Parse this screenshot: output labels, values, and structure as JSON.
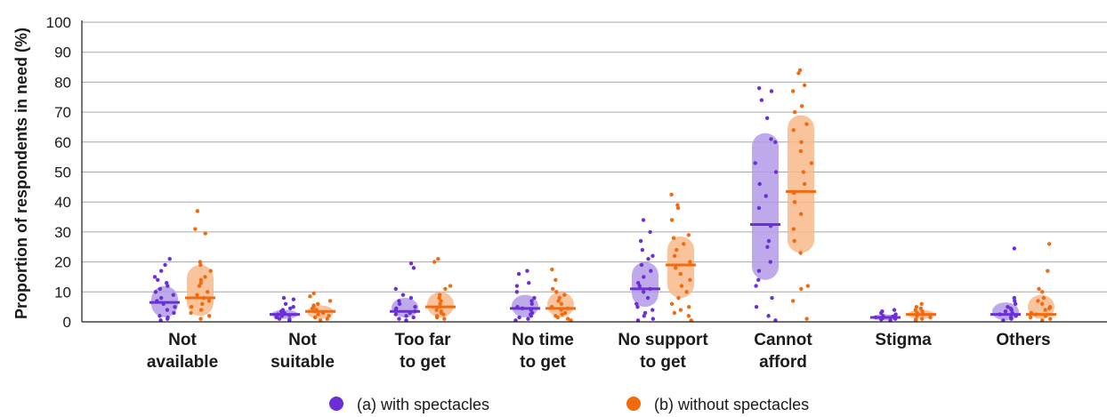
{
  "chart_data": {
    "type": "scatter",
    "ylabel": "Proportion of respondents in need (%)",
    "ylim": [
      0,
      100
    ],
    "yticks": [
      0,
      10,
      20,
      30,
      40,
      50,
      60,
      70,
      80,
      90,
      100
    ],
    "grid": "horizontal",
    "legend_position": "bottom",
    "categories": [
      [
        "Not",
        "available"
      ],
      [
        "Not",
        "suitable"
      ],
      [
        "Too far",
        "to get"
      ],
      [
        "No time",
        "to get"
      ],
      [
        "No support",
        "to get"
      ],
      [
        "Cannot",
        "afford"
      ],
      [
        "Stigma"
      ],
      [
        "Others"
      ]
    ],
    "series": [
      {
        "name": "(a) with spectacles",
        "color": "#6b2fd6",
        "band_color": "#b39be6",
        "medians": [
          6.5,
          2.5,
          3.5,
          4.5,
          11,
          32.5,
          1.5,
          2.5
        ],
        "iqr": [
          [
            1.5,
            12
          ],
          [
            1,
            4
          ],
          [
            1.5,
            8
          ],
          [
            1.5,
            9
          ],
          [
            5,
            20
          ],
          [
            14,
            63
          ],
          [
            0.5,
            2.5
          ],
          [
            0.5,
            6.5
          ]
        ],
        "points": [
          [
            21,
            19,
            17,
            15,
            14,
            12,
            10,
            9,
            8,
            7,
            6,
            5,
            4,
            3,
            2,
            1.5,
            1,
            0.5,
            13,
            11
          ],
          [
            8,
            7.5,
            6,
            5,
            4.5,
            4,
            3.5,
            3,
            2.5,
            2,
            1.8,
            1.5,
            1,
            0.8,
            0.5,
            2.2
          ],
          [
            19.5,
            18,
            11,
            9,
            8,
            7,
            6,
            5,
            4,
            3.5,
            3,
            2.5,
            2,
            1.5,
            1,
            0.5,
            4.5
          ],
          [
            17,
            16,
            13,
            12,
            10,
            8,
            7,
            6,
            5,
            4.5,
            4,
            3,
            2.5,
            2,
            1.5,
            1,
            0.5
          ],
          [
            34,
            30,
            27,
            24,
            22,
            21,
            19,
            17,
            15,
            13,
            12,
            11,
            10,
            8,
            6,
            5,
            4,
            3,
            2,
            1,
            0.5
          ],
          [
            78,
            77,
            74,
            68,
            61,
            60,
            53,
            50,
            46,
            42,
            38,
            32,
            27,
            25,
            20,
            17,
            14,
            12,
            8,
            5,
            2,
            0.5
          ],
          [
            4,
            3.5,
            3,
            2.5,
            2,
            1.8,
            1.5,
            1.2,
            1,
            0.8,
            0.5
          ],
          [
            24.5,
            8,
            7,
            6,
            5,
            4.5,
            4,
            3.5,
            3,
            2.5,
            2,
            1.5,
            1,
            0.5
          ]
        ]
      },
      {
        "name": "(b) without spectacles",
        "color": "#f26a10",
        "band_color": "#f8b98a",
        "medians": [
          8,
          3.5,
          5,
          4.5,
          19,
          43.5,
          2.5,
          2.5
        ],
        "iqr": [
          [
            2,
            19
          ],
          [
            1,
            5.5
          ],
          [
            1.5,
            10
          ],
          [
            1.5,
            10
          ],
          [
            8,
            28.5
          ],
          [
            23,
            69
          ],
          [
            1,
            4
          ],
          [
            1,
            9
          ]
        ],
        "points": [
          [
            37,
            31,
            29.5,
            20,
            19,
            17,
            15,
            13,
            12,
            10,
            9,
            8,
            7,
            6,
            5,
            4,
            3,
            2,
            1,
            14
          ],
          [
            9.5,
            8.5,
            7,
            6,
            5.5,
            5,
            4.5,
            4,
            3.5,
            3,
            2.5,
            2,
            1.5,
            1,
            0.5
          ],
          [
            21,
            20,
            12,
            11,
            9,
            8,
            7,
            6,
            5,
            4,
            3.5,
            3,
            2.5,
            2,
            1.5,
            1
          ],
          [
            17.5,
            14,
            11,
            10,
            9,
            8,
            7,
            6,
            5,
            4.5,
            4,
            3,
            2.5,
            2,
            1.5,
            1,
            0.5
          ],
          [
            42.5,
            39,
            38,
            34,
            29,
            28,
            26,
            24,
            22,
            20,
            18,
            16,
            14,
            12,
            10,
            8,
            6,
            5,
            4,
            3,
            2,
            0.5
          ],
          [
            84,
            83,
            79,
            77,
            72,
            70,
            66,
            64,
            60,
            57,
            53,
            50,
            46,
            43,
            40,
            36,
            31,
            27,
            23,
            12,
            11,
            7,
            1
          ],
          [
            6,
            5,
            4.5,
            4,
            3.5,
            3,
            2.5,
            2,
            1.5,
            1,
            0.8,
            0.5
          ],
          [
            26,
            17,
            11,
            10,
            8,
            7,
            6,
            5,
            4.5,
            4,
            3,
            2.5,
            2,
            1.5,
            1,
            0.5
          ]
        ]
      }
    ]
  }
}
